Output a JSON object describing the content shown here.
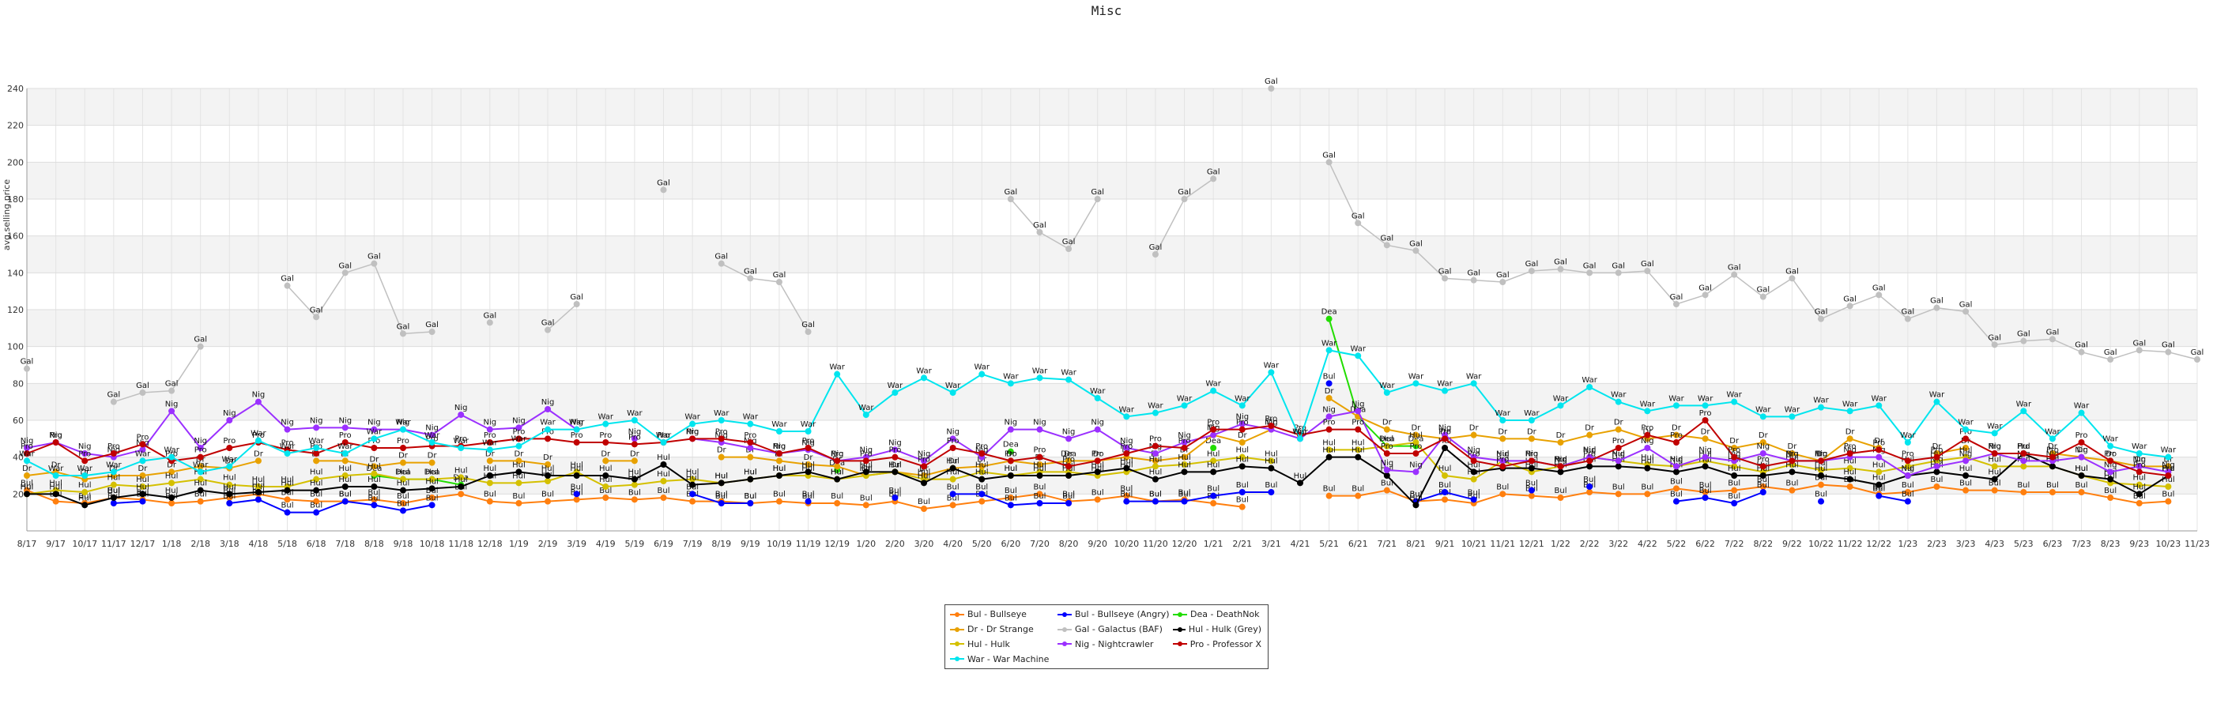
{
  "chart_data": {
    "type": "line",
    "title": "Misc",
    "ylabel": "avg selling price",
    "xlabel": "",
    "ylim": [
      0,
      240
    ],
    "yticks": [
      20,
      40,
      60,
      80,
      100,
      120,
      140,
      160,
      180,
      200,
      220,
      240
    ],
    "grid": true,
    "legend_position": "bottom",
    "categories": [
      "8/17",
      "9/17",
      "10/17",
      "11/17",
      "12/17",
      "1/18",
      "2/18",
      "3/18",
      "4/18",
      "5/18",
      "6/18",
      "7/18",
      "8/18",
      "9/18",
      "10/18",
      "11/18",
      "12/18",
      "1/19",
      "2/19",
      "3/19",
      "4/19",
      "5/19",
      "6/19",
      "7/19",
      "8/19",
      "9/19",
      "10/19",
      "11/19",
      "12/19",
      "1/20",
      "2/20",
      "3/20",
      "4/20",
      "5/20",
      "6/20",
      "7/20",
      "8/20",
      "9/20",
      "10/20",
      "11/20",
      "12/20",
      "1/21",
      "2/21",
      "3/21",
      "4/21",
      "5/21",
      "6/21",
      "7/21",
      "8/21",
      "9/21",
      "10/21",
      "11/21",
      "12/21",
      "1/22",
      "2/22",
      "3/22",
      "4/22",
      "5/22",
      "6/22",
      "7/22",
      "8/22",
      "9/22",
      "10/22",
      "11/22",
      "12/22",
      "1/23",
      "2/23",
      "3/23",
      "4/23",
      "5/23",
      "6/23",
      "7/23",
      "8/23",
      "9/23",
      "10/23",
      "11/23"
    ],
    "series": [
      {
        "name": "Bul - Bullseye",
        "abbr": "Bul",
        "color": "#ff7f0e",
        "values": [
          22,
          16,
          15,
          18,
          17,
          15,
          16,
          18,
          20,
          17,
          16,
          16,
          17,
          15,
          18,
          20,
          16,
          15,
          16,
          17,
          18,
          17,
          18,
          16,
          16,
          15,
          16,
          15,
          15,
          14,
          16,
          12,
          14,
          16,
          18,
          20,
          16,
          17,
          19,
          16,
          17,
          15,
          13,
          null,
          null,
          19,
          19,
          22,
          16,
          17,
          15,
          20,
          19,
          18,
          21,
          20,
          20,
          23,
          21,
          22,
          24,
          22,
          25,
          24,
          20,
          21,
          24,
          22,
          22,
          21,
          21,
          21,
          18,
          15,
          16,
          null
        ]
      },
      {
        "name": "Bul - Bullseye (Angry)",
        "abbr": "Bul",
        "color": "#0000ff",
        "values": [
          null,
          null,
          null,
          15,
          16,
          null,
          null,
          15,
          17,
          10,
          10,
          16,
          14,
          11,
          14,
          null,
          null,
          null,
          null,
          20,
          null,
          null,
          null,
          20,
          15,
          15,
          null,
          16,
          null,
          null,
          18,
          null,
          20,
          20,
          14,
          15,
          15,
          null,
          16,
          16,
          16,
          19,
          21,
          21,
          null,
          80,
          null,
          null,
          16,
          21,
          17,
          null,
          22,
          null,
          24,
          null,
          null,
          16,
          18,
          15,
          21,
          null,
          16,
          null,
          19,
          16,
          null,
          null,
          null,
          null,
          null,
          null,
          null,
          null,
          null,
          null
        ]
      },
      {
        "name": "Dea - DeathNok",
        "abbr": "Dea",
        "color": "#22dd00",
        "values": [
          null,
          null,
          null,
          null,
          null,
          null,
          null,
          null,
          null,
          null,
          null,
          null,
          30,
          28,
          28,
          25,
          null,
          null,
          null,
          null,
          null,
          null,
          null,
          null,
          null,
          null,
          null,
          null,
          33,
          null,
          null,
          null,
          null,
          null,
          43,
          null,
          38,
          null,
          null,
          null,
          null,
          45,
          null,
          null,
          null,
          115,
          62,
          46,
          46,
          null,
          null,
          null,
          null,
          null,
          null,
          null,
          null,
          null,
          null,
          null,
          null,
          null,
          null,
          null,
          null,
          null,
          null,
          null,
          null,
          null,
          null,
          null,
          null,
          null,
          null,
          null
        ]
      },
      {
        "name": "Dr - Dr Strange",
        "abbr": "Dr",
        "color": "#e8a100",
        "values": [
          30,
          32,
          28,
          30,
          30,
          32,
          35,
          34,
          38,
          null,
          38,
          38,
          35,
          37,
          37,
          null,
          38,
          38,
          36,
          null,
          38,
          38,
          null,
          null,
          40,
          40,
          38,
          36,
          35,
          30,
          32,
          30,
          34,
          35,
          38,
          36,
          38,
          38,
          40,
          38,
          40,
          52,
          48,
          55,
          null,
          72,
          62,
          55,
          52,
          50,
          52,
          50,
          50,
          48,
          52,
          55,
          50,
          52,
          50,
          45,
          48,
          42,
          38,
          50,
          45,
          null,
          42,
          45,
          null,
          null,
          42,
          40,
          38,
          35,
          35,
          null
        ]
      },
      {
        "name": "Gal - Galactus (BAF)",
        "abbr": "Gal",
        "color": "#c0c0c0",
        "values": [
          88,
          null,
          null,
          70,
          75,
          76,
          100,
          null,
          null,
          133,
          116,
          140,
          145,
          107,
          108,
          null,
          113,
          null,
          109,
          123,
          null,
          null,
          185,
          null,
          145,
          137,
          135,
          108,
          null,
          null,
          null,
          null,
          null,
          null,
          180,
          162,
          153,
          180,
          null,
          150,
          180,
          191,
          null,
          240,
          null,
          200,
          167,
          155,
          152,
          137,
          136,
          135,
          141,
          142,
          140,
          140,
          141,
          123,
          128,
          139,
          127,
          137,
          115,
          122,
          128,
          115,
          121,
          119,
          101,
          103,
          104,
          97,
          93,
          98,
          97,
          93
        ]
      },
      {
        "name": "Hul - Hulk",
        "abbr": "Hul",
        "color": "#d4c000",
        "values": [
          20,
          22,
          21,
          25,
          24,
          26,
          28,
          25,
          24,
          24,
          28,
          30,
          31,
          28,
          28,
          29,
          26,
          26,
          27,
          32,
          24,
          25,
          27,
          28,
          26,
          28,
          30,
          30,
          28,
          30,
          32,
          28,
          28,
          32,
          30,
          32,
          32,
          30,
          32,
          35,
          36,
          38,
          40,
          38,
          null,
          44,
          44,
          46,
          48,
          30,
          28,
          38,
          32,
          35,
          40,
          38,
          36,
          35,
          38,
          35,
          32,
          36,
          33,
          34,
          32,
          35,
          38,
          40,
          35,
          35,
          35,
          30,
          26,
          25,
          24,
          null
        ]
      },
      {
        "name": "Hul - Hulk (Grey)",
        "abbr": "Hul",
        "color": "#000000",
        "values": [
          20,
          20,
          14,
          18,
          20,
          18,
          22,
          20,
          21,
          22,
          22,
          24,
          24,
          22,
          23,
          24,
          30,
          32,
          30,
          30,
          30,
          28,
          36,
          25,
          26,
          28,
          30,
          32,
          28,
          32,
          32,
          26,
          34,
          28,
          30,
          30,
          30,
          32,
          34,
          28,
          32,
          32,
          35,
          34,
          26,
          40,
          40,
          30,
          14,
          45,
          32,
          34,
          34,
          32,
          35,
          35,
          34,
          32,
          35,
          30,
          30,
          32,
          30,
          28,
          25,
          30,
          32,
          30,
          28,
          42,
          35,
          30,
          28,
          20,
          30,
          null
        ]
      },
      {
        "name": "Nig - Nightcrawler",
        "abbr": "Nig",
        "color": "#9b30ff",
        "values": [
          45,
          48,
          42,
          40,
          44,
          65,
          45,
          60,
          70,
          55,
          56,
          56,
          55,
          55,
          52,
          63,
          55,
          56,
          66,
          55,
          null,
          50,
          null,
          50,
          48,
          45,
          42,
          44,
          38,
          40,
          44,
          38,
          50,
          40,
          55,
          55,
          50,
          55,
          45,
          42,
          48,
          52,
          58,
          55,
          50,
          62,
          65,
          33,
          32,
          52,
          40,
          38,
          38,
          35,
          40,
          38,
          45,
          35,
          40,
          38,
          42,
          38,
          38,
          40,
          40,
          30,
          35,
          38,
          42,
          38,
          38,
          40,
          32,
          35,
          32,
          null
        ]
      },
      {
        "name": "Pro - Professor X",
        "abbr": "Pro",
        "color": "#c00000",
        "values": [
          42,
          48,
          38,
          42,
          47,
          38,
          40,
          45,
          48,
          44,
          42,
          48,
          45,
          45,
          46,
          46,
          48,
          50,
          50,
          48,
          48,
          47,
          48,
          50,
          50,
          48,
          42,
          45,
          38,
          38,
          40,
          35,
          45,
          42,
          38,
          40,
          35,
          38,
          42,
          46,
          45,
          55,
          55,
          57,
          52,
          55,
          55,
          42,
          42,
          50,
          38,
          35,
          38,
          35,
          38,
          45,
          52,
          48,
          60,
          40,
          35,
          38,
          38,
          42,
          44,
          38,
          40,
          50,
          42,
          42,
          40,
          48,
          38,
          32,
          30,
          null
        ]
      },
      {
        "name": "War - War Machine",
        "abbr": "War",
        "color": "#00e5ee",
        "values": [
          38,
          30,
          30,
          32,
          38,
          40,
          32,
          35,
          49,
          42,
          45,
          42,
          50,
          55,
          48,
          45,
          44,
          46,
          55,
          55,
          58,
          60,
          48,
          58,
          60,
          58,
          54,
          54,
          85,
          63,
          75,
          83,
          75,
          85,
          80,
          83,
          82,
          72,
          62,
          64,
          68,
          76,
          68,
          86,
          50,
          98,
          95,
          75,
          80,
          76,
          80,
          60,
          60,
          68,
          78,
          70,
          65,
          68,
          68,
          70,
          62,
          62,
          67,
          65,
          68,
          48,
          70,
          55,
          53,
          65,
          50,
          64,
          46,
          42,
          40,
          null
        ]
      }
    ]
  }
}
